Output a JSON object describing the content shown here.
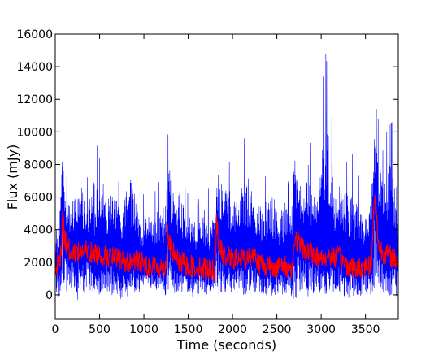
{
  "chart_data": {
    "type": "line",
    "title": "",
    "xlabel": "Time (seconds)",
    "ylabel": "Flux (mJy)",
    "xlim": [
      0,
      3870
    ],
    "ylim": [
      -1500,
      16000
    ],
    "xticks": [
      0,
      500,
      1000,
      1500,
      2000,
      2500,
      3000,
      3500
    ],
    "yticks": [
      0,
      2000,
      4000,
      6000,
      8000,
      10000,
      12000,
      14000,
      16000
    ],
    "legend": "none",
    "grid": false,
    "series": [
      {
        "color": "#0000ff",
        "description_values": "raw flux, dense noisy time series",
        "x": [
          0,
          50,
          80,
          100,
          150,
          200,
          260,
          300,
          350,
          400,
          450,
          500,
          550,
          600,
          650,
          700,
          750,
          800,
          850,
          900,
          950,
          1000,
          1050,
          1100,
          1150,
          1200,
          1250,
          1280,
          1320,
          1350,
          1400,
          1450,
          1500,
          1550,
          1600,
          1650,
          1700,
          1750,
          1800,
          1840,
          1900,
          1950,
          2000,
          2050,
          2100,
          2150,
          2200,
          2250,
          2300,
          2350,
          2400,
          2450,
          2500,
          2550,
          2600,
          2650,
          2700,
          2750,
          2800,
          2850,
          2900,
          2950,
          3000,
          3040,
          3100,
          3150,
          3200,
          3250,
          3300,
          3350,
          3400,
          3450,
          3500,
          3550,
          3600,
          3650,
          3700,
          3750,
          3800,
          3870
        ],
        "peaks": [
          3200,
          6000,
          13300,
          8300,
          6900,
          7200,
          9600,
          8200,
          7000,
          7800,
          6500,
          12000,
          8100,
          7500,
          8900,
          7200,
          6400,
          9300,
          9600,
          8700,
          5800,
          6200,
          6400,
          5600,
          7000,
          6600,
          7400,
          10700,
          8000,
          7400,
          9400,
          6700,
          6200,
          6000,
          5500,
          6400,
          7000,
          6100,
          5900,
          9200,
          8800,
          8200,
          8000,
          7600,
          8200,
          10300,
          8800,
          6800,
          7300,
          6900,
          7800,
          8200,
          7000,
          6600,
          7600,
          6400,
          10300,
          10000,
          7800,
          11100,
          7300,
          8400,
          10700,
          15300,
          12700,
          8300,
          9300,
          8000,
          8200,
          8700,
          7800,
          6800,
          5800,
          7300,
          12100,
          10600,
          8700,
          10300,
          10600,
          5100
        ],
        "troughs": [
          -300,
          -500,
          200,
          -500,
          -300,
          100,
          -700,
          -200,
          -100,
          -200,
          -300,
          -400,
          -100,
          0,
          -400,
          -200,
          -600,
          -300,
          -400,
          -200,
          -100,
          200,
          400,
          -100,
          100,
          0,
          -300,
          -100,
          400,
          -300,
          -100,
          -200,
          -400,
          -400,
          -200,
          -100,
          -200,
          -200,
          -200,
          -700,
          -200,
          -100,
          -300,
          -200,
          -400,
          -200,
          -200,
          -100,
          -300,
          -300,
          -200,
          -400,
          -500,
          -200,
          -200,
          -300,
          -1000,
          -200,
          -100,
          -400,
          -300,
          -100,
          -300,
          -300,
          -500,
          -200,
          -200,
          -300,
          -600,
          -200,
          -400,
          -300,
          -200,
          -200,
          -300,
          -200,
          -300,
          -400,
          -500,
          -300
        ]
      },
      {
        "color": "#ff0000",
        "description_values": "smoothed flux",
        "x": [
          0,
          50,
          75,
          80,
          100,
          150,
          200,
          300,
          400,
          500,
          600,
          700,
          800,
          900,
          1000,
          1100,
          1200,
          1250,
          1270,
          1300,
          1350,
          1400,
          1500,
          1600,
          1700,
          1800,
          1820,
          1850,
          1900,
          2000,
          2100,
          2200,
          2250,
          2300,
          2400,
          2500,
          2600,
          2680,
          2700,
          2800,
          2900,
          3000,
          3100,
          3200,
          3300,
          3400,
          3500,
          3570,
          3600,
          3650,
          3700,
          3800,
          3870
        ],
        "values": [
          1800,
          2000,
          3000,
          6000,
          3500,
          2800,
          2600,
          2700,
          2600,
          2500,
          2300,
          2200,
          2000,
          2100,
          1900,
          1700,
          1700,
          1800,
          4000,
          2800,
          2400,
          2000,
          1800,
          1700,
          1600,
          1500,
          4500,
          2900,
          2400,
          2200,
          2200,
          2300,
          2600,
          1900,
          1800,
          1700,
          1700,
          1700,
          3500,
          2800,
          2500,
          2200,
          2400,
          2300,
          1800,
          1600,
          1800,
          1900,
          6300,
          3000,
          2600,
          2300,
          2100
        ]
      }
    ]
  }
}
